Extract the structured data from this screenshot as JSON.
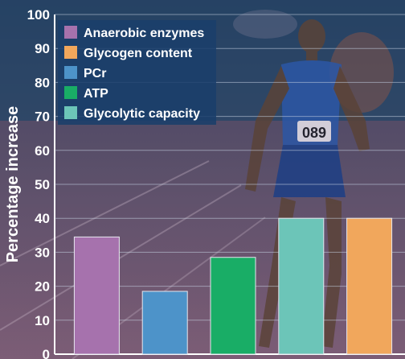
{
  "chart_data": {
    "type": "bar",
    "ylabel": "Percentage increase",
    "ylim": [
      0,
      100
    ],
    "yticks": [
      0,
      10,
      20,
      30,
      40,
      50,
      60,
      70,
      80,
      90,
      100
    ],
    "grid": true,
    "legend_position": "top-left",
    "series": [
      {
        "name": "Anaerobic enzymes",
        "value": 34.5,
        "color": "#a672ad"
      },
      {
        "name": "PCr",
        "value": 18.5,
        "color": "#4d93c9"
      },
      {
        "name": "ATP",
        "value": 28.5,
        "color": "#19ad66"
      },
      {
        "name": "Glycolytic capacity",
        "value": 40,
        "color": "#6cc5b8"
      },
      {
        "name": "Glycogen content",
        "value": 40,
        "color": "#f1a75c"
      }
    ],
    "legend_order": [
      "Anaerobic enzymes",
      "Glycogen content",
      "PCr",
      "ATP",
      "Glycolytic capacity"
    ]
  },
  "image": {
    "background": "photo-of-runner-on-track"
  }
}
